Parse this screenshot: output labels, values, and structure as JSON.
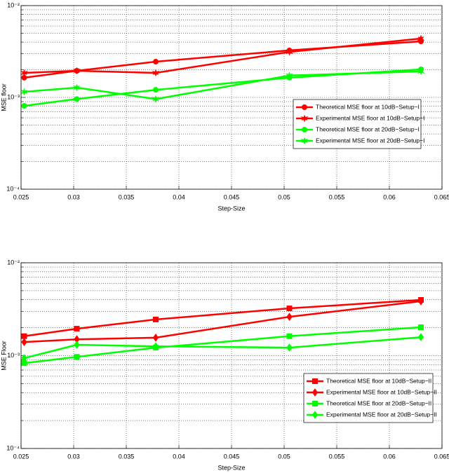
{
  "chart_data": [
    {
      "type": "line",
      "xlabel": "Step-Size",
      "ylabel": "MSE floor",
      "log_y": true,
      "grid": true,
      "minor_grid": true,
      "legend": "lower right",
      "x": [
        0.0253,
        0.0303,
        0.0378,
        0.0505,
        0.063
      ],
      "xlim": [
        0.025,
        0.065
      ],
      "xticks": [
        0.025,
        0.03,
        0.035,
        0.04,
        0.045,
        0.05,
        0.055,
        0.06,
        0.065
      ],
      "ylim": [
        0.0001,
        0.01
      ],
      "yticks": [
        {
          "value": 0.0001,
          "label": "10⁻⁴"
        },
        {
          "value": 0.001,
          "label": "10⁻³"
        },
        {
          "value": 0.01,
          "label": "10⁻²"
        }
      ],
      "series": [
        {
          "name": "Theoretical MSE floor at 10dB−Setup−I",
          "color": "#ff0000",
          "marker": "circle",
          "values": [
            0.00164,
            0.00195,
            0.00245,
            0.00325,
            0.00408
          ]
        },
        {
          "name": "Experimental MSE floor at 10dB−Setup−I",
          "color": "#ff0000",
          "marker": "star",
          "values": [
            0.00185,
            0.00195,
            0.00185,
            0.00313,
            0.00438
          ]
        },
        {
          "name": "Theoretical MSE floor at 20dB−Setup−I",
          "color": "#00ff00",
          "marker": "circle",
          "values": [
            0.00081,
            0.00096,
            0.00121,
            0.00164,
            0.00202
          ]
        },
        {
          "name": "Experimental MSE floor at 20dB−Setup−I",
          "color": "#00ff00",
          "marker": "star",
          "values": [
            0.00115,
            0.00128,
            0.00096,
            0.00173,
            0.00192
          ]
        }
      ]
    },
    {
      "type": "line",
      "xlabel": "Step-Size",
      "ylabel": "MSE Floor",
      "log_y": true,
      "grid": true,
      "minor_grid": true,
      "legend": "lower right",
      "x": [
        0.0253,
        0.0303,
        0.0378,
        0.0505,
        0.063
      ],
      "xlim": [
        0.025,
        0.065
      ],
      "xticks": [
        0.025,
        0.03,
        0.035,
        0.04,
        0.045,
        0.05,
        0.055,
        0.06,
        0.065
      ],
      "ylim": [
        0.0001,
        0.01
      ],
      "yticks": [
        {
          "value": 0.0001,
          "label": "10⁻⁴"
        },
        {
          "value": 0.001,
          "label": "10⁻³"
        },
        {
          "value": 0.01,
          "label": "10⁻²"
        }
      ],
      "series": [
        {
          "name": "Theoretical MSE floor at 10dB−Setup−II",
          "color": "#ff0000",
          "marker": "square",
          "values": [
            0.00162,
            0.00195,
            0.00245,
            0.00323,
            0.00398
          ]
        },
        {
          "name": "Experimental MSE floor at 10dB−Setup−II",
          "color": "#ff0000",
          "marker": "diamond",
          "values": [
            0.0014,
            0.0015,
            0.00156,
            0.00262,
            0.00385
          ]
        },
        {
          "name": "Theoretical MSE floor at 20dB−Setup−II",
          "color": "#00ff00",
          "marker": "square",
          "values": [
            0.00083,
            0.00097,
            0.00122,
            0.00162,
            0.00202
          ]
        },
        {
          "name": "Experimental MSE floor at 20dB−Setup−II",
          "color": "#00ff00",
          "marker": "diamond",
          "values": [
            0.00094,
            0.00131,
            0.00126,
            0.00122,
            0.00158
          ]
        }
      ]
    }
  ]
}
